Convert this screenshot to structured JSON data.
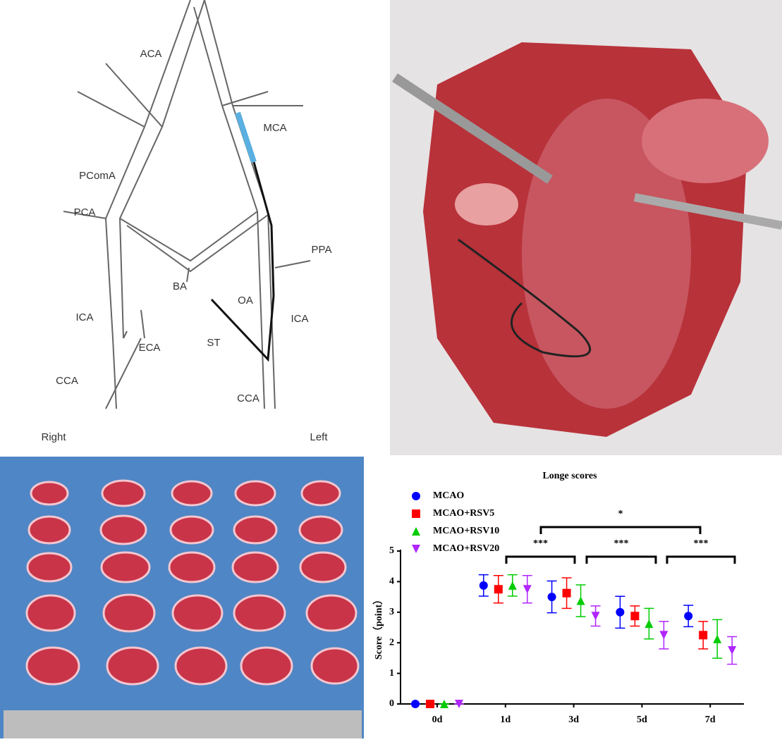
{
  "diagram": {
    "labels": [
      "ACA",
      "MCA",
      "PComA",
      "PCA",
      "PPA",
      "BA",
      "OA",
      "ICA",
      "ICA",
      "ECA",
      "ST",
      "CCA",
      "CCA",
      "Right",
      "Left"
    ]
  },
  "chart_data": {
    "type": "scatter",
    "title": "Longe scores",
    "y_label": "Score（point）",
    "categories": [
      "0d",
      "1d",
      "3d",
      "5d",
      "7d"
    ],
    "series": [
      {
        "name": "MCAO",
        "color": "#0000ff",
        "marker": "circle",
        "values": [
          0,
          3.875,
          3.5,
          3.0,
          2.875
        ],
        "errors": [
          0,
          0.35,
          0.52,
          0.52,
          0.35
        ]
      },
      {
        "name": "MCAO+RSV5",
        "color": "#ff0000",
        "marker": "square",
        "values": [
          0,
          3.75,
          3.625,
          2.875,
          2.25
        ],
        "errors": [
          0,
          0.45,
          0.5,
          0.33,
          0.45
        ]
      },
      {
        "name": "MCAO+RSV10",
        "color": "#00cc00",
        "marker": "triangle-up",
        "values": [
          0,
          3.875,
          3.375,
          2.625,
          2.125
        ],
        "errors": [
          0,
          0.35,
          0.52,
          0.5,
          0.63
        ]
      },
      {
        "name": "MCAO+RSV20",
        "color": "#b026ff",
        "marker": "triangle-down",
        "values": [
          0,
          3.75,
          2.875,
          2.25,
          1.75
        ],
        "errors": [
          0,
          0.45,
          0.33,
          0.45,
          0.45
        ]
      }
    ],
    "ylim": [
      0,
      5
    ],
    "yticks": [
      0,
      1,
      2,
      3,
      4,
      5
    ],
    "annotations": [
      "*",
      "***",
      "***",
      "***"
    ]
  }
}
